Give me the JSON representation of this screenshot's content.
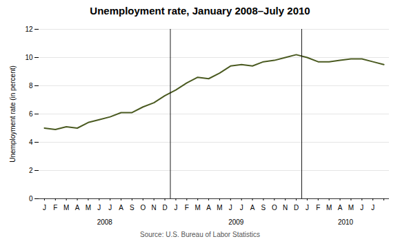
{
  "chart_data": {
    "type": "line",
    "title": "Unemployment rate, January 2008–July 2010",
    "ylabel": "Unemployment rate (in percent)",
    "caption": "Source: U.S. Bureau of Labor Statistics",
    "categories": [
      "J",
      "F",
      "M",
      "A",
      "M",
      "J",
      "J",
      "A",
      "S",
      "O",
      "N",
      "D",
      "J",
      "F",
      "M",
      "A",
      "M",
      "J",
      "J",
      "A",
      "S",
      "O",
      "N",
      "D",
      "J",
      "F",
      "M",
      "A",
      "M",
      "J",
      "J",
      null
    ],
    "values": [
      5.0,
      4.9,
      5.1,
      5.0,
      5.4,
      5.6,
      5.8,
      6.1,
      6.1,
      6.5,
      6.8,
      7.3,
      7.7,
      8.2,
      8.6,
      8.5,
      8.9,
      9.4,
      9.5,
      9.4,
      9.7,
      9.8,
      10.0,
      10.2,
      10.0,
      9.7,
      9.7,
      9.8,
      9.9,
      9.9,
      9.7,
      9.5
    ],
    "color": "#4a5a20",
    "ylim": [
      0,
      12
    ],
    "yticks": [
      0,
      2,
      4,
      6,
      8,
      10,
      12
    ],
    "grid": true,
    "annotations": [
      {
        "text": "2008",
        "x": 5.5
      },
      {
        "text": "2009",
        "x": 17.5
      },
      {
        "text": "2010",
        "x": 27.5
      }
    ],
    "dividers": [
      11.5,
      23.5
    ]
  }
}
